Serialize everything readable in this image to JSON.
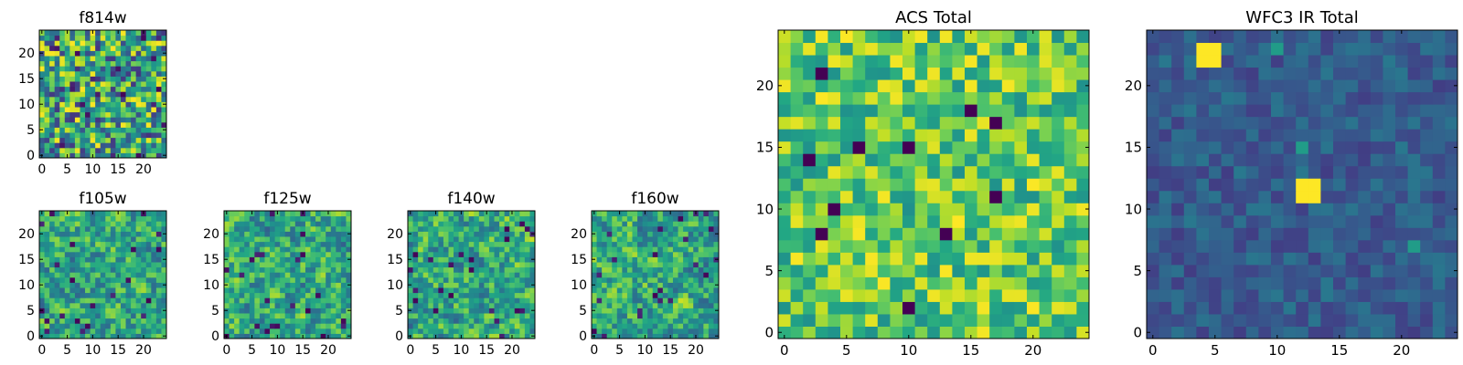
{
  "chart_data": [
    {
      "type": "heatmap",
      "title": "f814w",
      "colormap": "viridis",
      "grid": [
        25,
        25
      ],
      "xlim": [
        0,
        25
      ],
      "ylim": [
        0,
        25
      ],
      "xticks": [
        0,
        5,
        10,
        15,
        20
      ],
      "yticks": [
        0,
        5,
        10,
        15,
        20
      ],
      "values_range": [
        0.15,
        1.0
      ],
      "seed": 11,
      "smooth": false
    },
    {
      "type": "heatmap",
      "title": "f105w",
      "colormap": "viridis",
      "grid": [
        25,
        25
      ],
      "xlim": [
        0,
        25
      ],
      "ylim": [
        0,
        25
      ],
      "xticks": [
        0,
        5,
        10,
        15,
        20
      ],
      "yticks": [
        0,
        5,
        10,
        15,
        20
      ],
      "values_range": [
        0.2,
        1.0
      ],
      "seed": 23,
      "smooth": true
    },
    {
      "type": "heatmap",
      "title": "f125w",
      "colormap": "viridis",
      "grid": [
        25,
        25
      ],
      "xlim": [
        0,
        25
      ],
      "ylim": [
        0,
        25
      ],
      "xticks": [
        0,
        5,
        10,
        15,
        20
      ],
      "yticks": [
        0,
        5,
        10,
        15,
        20
      ],
      "values_range": [
        0.2,
        1.0
      ],
      "seed": 37,
      "smooth": true
    },
    {
      "type": "heatmap",
      "title": "f140w",
      "colormap": "viridis",
      "grid": [
        25,
        25
      ],
      "xlim": [
        0,
        25
      ],
      "ylim": [
        0,
        25
      ],
      "xticks": [
        0,
        5,
        10,
        15,
        20
      ],
      "yticks": [
        0,
        5,
        10,
        15,
        20
      ],
      "values_range": [
        0.2,
        1.0
      ],
      "seed": 41,
      "smooth": true
    },
    {
      "type": "heatmap",
      "title": "f160w",
      "colormap": "viridis",
      "grid": [
        25,
        25
      ],
      "xlim": [
        0,
        25
      ],
      "ylim": [
        0,
        25
      ],
      "xticks": [
        0,
        5,
        10,
        15,
        20
      ],
      "yticks": [
        0,
        5,
        10,
        15,
        20
      ],
      "values_range": [
        0.2,
        1.0
      ],
      "seed": 53,
      "smooth": true
    },
    {
      "type": "heatmap",
      "title": "ACS Total",
      "colormap": "viridis",
      "grid": [
        25,
        25
      ],
      "xlim": [
        0,
        25
      ],
      "ylim": [
        0,
        25
      ],
      "xticks": [
        0,
        5,
        10,
        15,
        20
      ],
      "yticks": [
        0,
        5,
        10,
        15,
        20
      ],
      "values_range": [
        0.5,
        1.0
      ],
      "seed": 67,
      "smooth": false,
      "dark_cells": [
        [
          3,
          21
        ],
        [
          13,
          8
        ],
        [
          2,
          14
        ],
        [
          6,
          15
        ],
        [
          17,
          11
        ],
        [
          17,
          17
        ],
        [
          3,
          8
        ],
        [
          10,
          2
        ],
        [
          10,
          15
        ],
        [
          15,
          18
        ],
        [
          4,
          10
        ]
      ]
    },
    {
      "type": "heatmap",
      "title": "WFC3 IR Total",
      "colormap": "viridis",
      "grid": [
        25,
        25
      ],
      "xlim": [
        0,
        25
      ],
      "ylim": [
        0,
        25
      ],
      "xticks": [
        0,
        5,
        10,
        15,
        20
      ],
      "yticks": [
        0,
        5,
        10,
        15,
        20
      ],
      "values_range": [
        0.18,
        0.4
      ],
      "seed": 79,
      "smooth": false,
      "bright_cells": [
        [
          4,
          23
        ],
        [
          5,
          23
        ],
        [
          4,
          22
        ],
        [
          5,
          22
        ],
        [
          12,
          12
        ],
        [
          13,
          12
        ],
        [
          12,
          11
        ],
        [
          13,
          11
        ]
      ],
      "accent_cells": [
        [
          21,
          7
        ],
        [
          10,
          23
        ],
        [
          12,
          15
        ]
      ]
    }
  ]
}
